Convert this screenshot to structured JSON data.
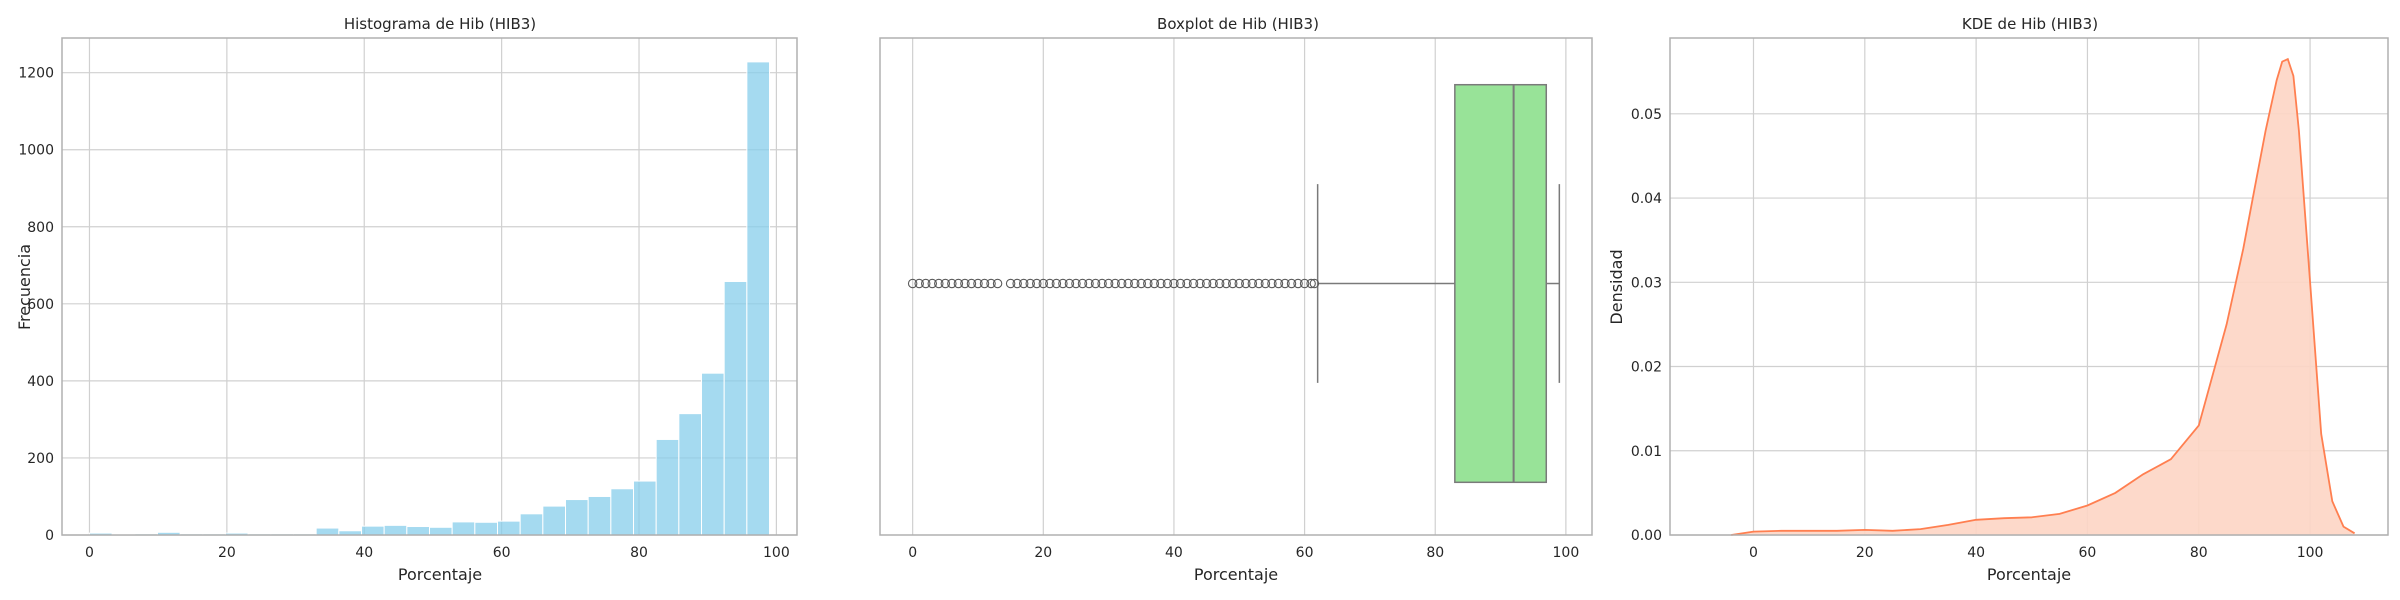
{
  "chart_data": [
    {
      "type": "bar",
      "title": "Histograma de Hib (HIB3)",
      "xlabel": "Porcentaje",
      "ylabel": "Frecuencia",
      "xlim": [
        -4,
        103
      ],
      "ylim": [
        0,
        1290
      ],
      "xticks": [
        0,
        20,
        40,
        60,
        80,
        100
      ],
      "yticks": [
        0,
        200,
        400,
        600,
        800,
        1000,
        1200
      ],
      "grid": true,
      "color": "#87ceeb",
      "bin_edges": [
        0,
        3.3,
        6.6,
        9.9,
        13.2,
        16.5,
        19.8,
        23.1,
        26.4,
        29.7,
        33.0,
        36.3,
        39.6,
        42.9,
        46.2,
        49.5,
        52.8,
        56.1,
        59.4,
        62.7,
        66.0,
        69.3,
        72.6,
        75.9,
        79.2,
        82.5,
        85.8,
        89.1,
        92.4,
        95.7,
        99.0
      ],
      "values": [
        5,
        2,
        3,
        7,
        3,
        3,
        5,
        3,
        3,
        3,
        18,
        11,
        23,
        25,
        22,
        20,
        34,
        33,
        36,
        55,
        75,
        92,
        100,
        120,
        140,
        248,
        315,
        420,
        658,
        1228
      ]
    },
    {
      "type": "box",
      "title": "Boxplot de Hib (HIB3)",
      "xlabel": "Porcentaje",
      "xlim": [
        -5,
        104
      ],
      "xticks": [
        0,
        20,
        40,
        60,
        80,
        100
      ],
      "grid": true,
      "color": "#98e398",
      "whisker_low": 62,
      "q1": 83,
      "median": 92,
      "q3": 97,
      "whisker_high": 99,
      "outliers": [
        0,
        1,
        2,
        3,
        4,
        5,
        6,
        7,
        8,
        9,
        10,
        11,
        12,
        13,
        15,
        16,
        17,
        18,
        19,
        20,
        21,
        22,
        23,
        24,
        25,
        26,
        27,
        28,
        29,
        30,
        31,
        32,
        33,
        34,
        35,
        36,
        37,
        38,
        39,
        40,
        41,
        42,
        43,
        44,
        45,
        46,
        47,
        48,
        49,
        50,
        51,
        52,
        53,
        54,
        55,
        56,
        57,
        58,
        59,
        60,
        61,
        61.5
      ]
    },
    {
      "type": "area",
      "title": "KDE de Hib (HIB3)",
      "xlabel": "Porcentaje",
      "ylabel": "Densidad",
      "xlim": [
        -15,
        114
      ],
      "ylim": [
        0,
        0.059
      ],
      "xticks": [
        0,
        20,
        40,
        60,
        80,
        100
      ],
      "yticks": [
        0.0,
        0.01,
        0.02,
        0.03,
        0.04,
        0.05
      ],
      "grid": true,
      "line_color": "#ff7f50",
      "fill_color": "#fdd5c4",
      "x": [
        -4,
        0,
        5,
        10,
        15,
        20,
        25,
        30,
        35,
        40,
        45,
        50,
        55,
        60,
        65,
        70,
        75,
        80,
        85,
        88,
        90,
        92,
        94,
        95,
        96,
        97,
        98,
        100,
        102,
        104,
        106,
        108
      ],
      "y": [
        0.0,
        0.0004,
        0.0005,
        0.0005,
        0.0005,
        0.0006,
        0.0005,
        0.0007,
        0.0012,
        0.0018,
        0.002,
        0.0021,
        0.0025,
        0.0035,
        0.005,
        0.0072,
        0.009,
        0.013,
        0.025,
        0.034,
        0.041,
        0.048,
        0.054,
        0.0562,
        0.0565,
        0.0545,
        0.048,
        0.03,
        0.012,
        0.004,
        0.001,
        0.0002
      ]
    }
  ]
}
